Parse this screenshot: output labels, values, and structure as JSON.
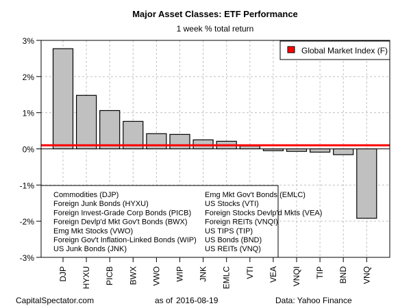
{
  "chart_data": {
    "type": "bar",
    "title": "Major Asset Classes: ETF Performance",
    "subtitle": "1 week % total return",
    "xlabel": "",
    "ylabel": "",
    "ylim": [
      -3,
      3
    ],
    "yticks": [
      3,
      2,
      1,
      0,
      -1,
      -2,
      -3
    ],
    "ytick_labels": [
      "3%",
      "2%",
      "1%",
      "0%",
      "-1%",
      "-2%",
      "-3%"
    ],
    "grid": true,
    "categories": [
      "DJP",
      "HYXU",
      "PICB",
      "BWX",
      "VWO",
      "WIP",
      "JNK",
      "EMLC",
      "VTI",
      "VEA",
      "VNQI",
      "TIP",
      "BND",
      "VNQ"
    ],
    "values": [
      2.77,
      1.48,
      1.06,
      0.76,
      0.42,
      0.4,
      0.25,
      0.21,
      0.08,
      -0.05,
      -0.07,
      -0.09,
      -0.16,
      -1.92
    ],
    "bar_color": "#c0c0c0",
    "reference_line": {
      "label": "Global Market Index (F)",
      "value": 0.1,
      "color": "#ff0000",
      "legend_position": "top-right"
    },
    "category_legend": {
      "position": "bottom-left",
      "column1": [
        "Commodities (DJP)",
        "Foreign Junk Bonds (HYXU)",
        "Foreign Invest-Grade Corp Bonds (PICB)",
        "Foreign Devlp'd Mkt Gov't Bonds (BWX)",
        "Emg Mkt Stocks (VWO)",
        "Foreign Gov't Inflation-Linked Bonds (WIP)",
        "US Junk Bonds (JNK)"
      ],
      "column2": [
        "Emg Mkt Gov't Bonds (EMLC)",
        "US Stocks (VTI)",
        "Foreign Stocks Devlp'd Mkts (VEA)",
        "Foreign REITs (VNQI)",
        "US TIPS (TIP)",
        "US Bonds (BND)",
        "US REITs (VNQ)"
      ]
    }
  },
  "footer": {
    "source_site": "CapitalSpectator.com",
    "as_of_label": "as of",
    "date": "2016-08-19",
    "data_source": "Data: Yahoo Finance"
  }
}
